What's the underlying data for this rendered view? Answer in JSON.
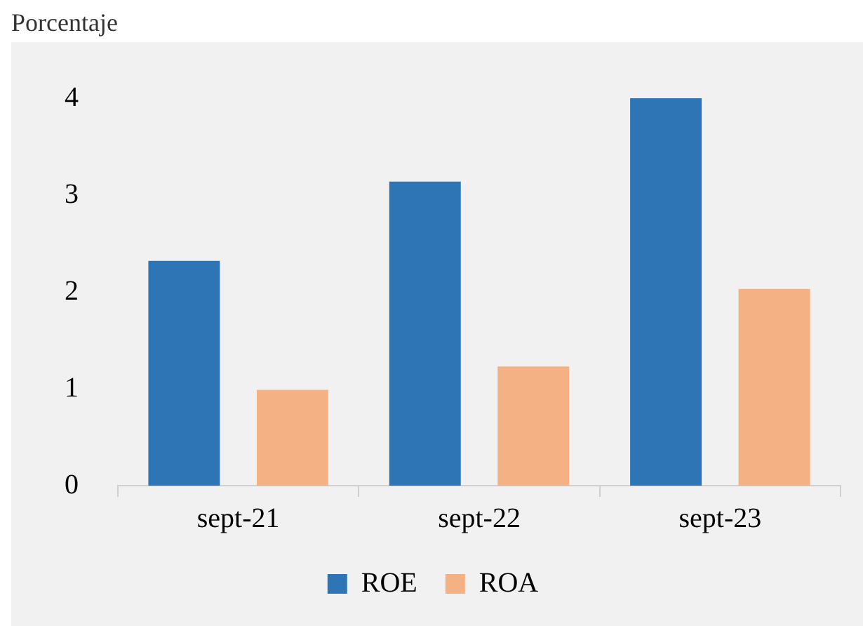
{
  "chart_data": {
    "type": "bar",
    "ylabel": "Porcentaje",
    "categories": [
      "sept-21",
      "sept-22",
      "sept-23"
    ],
    "series": [
      {
        "name": "ROE",
        "color": "#2e75b6",
        "values": [
          2.32,
          3.14,
          4.0
        ]
      },
      {
        "name": "ROA",
        "color": "#f4b183",
        "values": [
          0.99,
          1.23,
          2.03
        ]
      }
    ],
    "ylim": [
      0,
      4
    ],
    "yticks": [
      0,
      1,
      2,
      3,
      4
    ],
    "grid": false,
    "legend": "bottom"
  }
}
